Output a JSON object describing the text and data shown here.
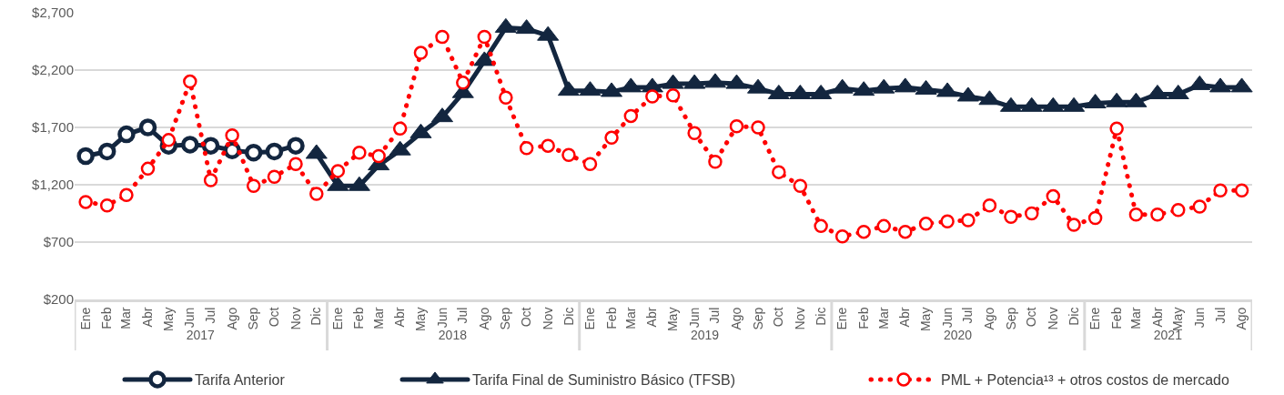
{
  "chart_data": {
    "type": "line",
    "x": [
      "2017-01",
      "2017-02",
      "2017-03",
      "2017-04",
      "2017-05",
      "2017-06",
      "2017-07",
      "2017-08",
      "2017-09",
      "2017-10",
      "2017-11",
      "2017-12",
      "2018-01",
      "2018-02",
      "2018-03",
      "2018-04",
      "2018-05",
      "2018-06",
      "2018-07",
      "2018-08",
      "2018-09",
      "2018-10",
      "2018-11",
      "2018-12",
      "2019-01",
      "2019-02",
      "2019-03",
      "2019-04",
      "2019-05",
      "2019-06",
      "2019-07",
      "2019-08",
      "2019-09",
      "2019-10",
      "2019-11",
      "2019-12",
      "2020-01",
      "2020-02",
      "2020-03",
      "2020-04",
      "2020-05",
      "2020-06",
      "2020-07",
      "2020-08",
      "2020-09",
      "2020-10",
      "2020-11",
      "2020-12",
      "2021-01",
      "2021-02",
      "2021-03",
      "2021-04",
      "2021-05",
      "2021-06",
      "2021-07",
      "2021-08"
    ],
    "xlim": [
      "2016-12-16",
      "2021-08-16"
    ],
    "xticks": [
      {
        "value": "2017-01",
        "label": "Ene"
      },
      {
        "value": "2017-02",
        "label": "Feb"
      },
      {
        "value": "2017-03",
        "label": "Mar"
      },
      {
        "value": "2017-04",
        "label": "Abr"
      },
      {
        "value": "2017-05",
        "label": "May"
      },
      {
        "value": "2017-06",
        "label": "Jun"
      },
      {
        "value": "2017-07",
        "label": "Jul"
      },
      {
        "value": "2017-08",
        "label": "Ago"
      },
      {
        "value": "2017-09",
        "label": "Sep"
      },
      {
        "value": "2017-10",
        "label": "Oct"
      },
      {
        "value": "2017-11",
        "label": "Nov"
      },
      {
        "value": "2017-12",
        "label": "Dic"
      },
      {
        "value": "2018-01",
        "label": "Ene"
      },
      {
        "value": "2018-02",
        "label": "Feb"
      },
      {
        "value": "2018-03",
        "label": "Mar"
      },
      {
        "value": "2018-04",
        "label": "Abr"
      },
      {
        "value": "2018-05",
        "label": "May"
      },
      {
        "value": "2018-06",
        "label": "Jun"
      },
      {
        "value": "2018-07",
        "label": "Jul"
      },
      {
        "value": "2018-08",
        "label": "Ago"
      },
      {
        "value": "2018-09",
        "label": "Sep"
      },
      {
        "value": "2018-10",
        "label": "Oct"
      },
      {
        "value": "2018-11",
        "label": "Nov"
      },
      {
        "value": "2018-12",
        "label": "Dic"
      },
      {
        "value": "2019-01",
        "label": "Ene"
      },
      {
        "value": "2019-02",
        "label": "Feb"
      },
      {
        "value": "2019-03",
        "label": "Mar"
      },
      {
        "value": "2019-04",
        "label": "Abr"
      },
      {
        "value": "2019-05",
        "label": "May"
      },
      {
        "value": "2019-06",
        "label": "Jun"
      },
      {
        "value": "2019-07",
        "label": "Jul"
      },
      {
        "value": "2019-08",
        "label": "Ago"
      },
      {
        "value": "2019-09",
        "label": "Sep"
      },
      {
        "value": "2019-10",
        "label": "Oct"
      },
      {
        "value": "2019-11",
        "label": "Nov"
      },
      {
        "value": "2019-12",
        "label": "Dic"
      },
      {
        "value": "2020-01",
        "label": "Ene"
      },
      {
        "value": "2020-02",
        "label": "Feb"
      },
      {
        "value": "2020-03",
        "label": "Mar"
      },
      {
        "value": "2020-04",
        "label": "Abr"
      },
      {
        "value": "2020-05",
        "label": "May"
      },
      {
        "value": "2020-06",
        "label": "Jun"
      },
      {
        "value": "2020-07",
        "label": "Jul"
      },
      {
        "value": "2020-08",
        "label": "Ago"
      },
      {
        "value": "2020-09",
        "label": "Sep"
      },
      {
        "value": "2020-10",
        "label": "Oct"
      },
      {
        "value": "2020-11",
        "label": "Nov"
      },
      {
        "value": "2020-12",
        "label": "Dic"
      },
      {
        "value": "2021-01",
        "label": "Ene"
      },
      {
        "value": "2021-02",
        "label": "Feb"
      },
      {
        "value": "2021-03",
        "label": "Mar"
      },
      {
        "value": "2021-04",
        "label": "Abr"
      },
      {
        "value": "2021-05",
        "label": "May"
      },
      {
        "value": "2021-06",
        "label": "Jun"
      },
      {
        "value": "2021-07",
        "label": "Jul"
      },
      {
        "value": "2021-08",
        "label": "Ago"
      }
    ],
    "x2lim": [
      "2016-12-16",
      "2021-08-16"
    ],
    "x2ticks": [
      {
        "value": "2017-06-16",
        "label": "2017"
      },
      {
        "value": "2018-06-16",
        "label": "2018"
      },
      {
        "value": "2019-06-16",
        "label": "2019"
      },
      {
        "value": "2020-06-16",
        "label": "2020"
      },
      {
        "value": "2021-04-16",
        "label": "2021"
      }
    ],
    "ylim": [
      200,
      2700
    ],
    "yticks": [
      {
        "value": 200,
        "label": "$200"
      },
      {
        "value": 700,
        "label": "$700"
      },
      {
        "value": 1200,
        "label": "$1,200"
      },
      {
        "value": 1700,
        "label": "$1,700"
      },
      {
        "value": 2200,
        "label": "$2,200"
      },
      {
        "value": 2700,
        "label": "$2,700"
      }
    ],
    "series": [
      {
        "name": "Tarifa Anterior",
        "color": "#13263f",
        "marker": "circle",
        "line_style": "solid",
        "values": [
          1450,
          1490,
          1640,
          1700,
          1540,
          1550,
          1540,
          1500,
          1480,
          1490,
          1540,
          null,
          null,
          null,
          null,
          null,
          null,
          null,
          null,
          null,
          null,
          null,
          null,
          null,
          null,
          null,
          null,
          null,
          null,
          null,
          null,
          null,
          null,
          null,
          null,
          null,
          null,
          null,
          null,
          null,
          null,
          null,
          null,
          null,
          null,
          null,
          null,
          null,
          null,
          null,
          null,
          null,
          null,
          null,
          null,
          null
        ]
      },
      {
        "name": "Tarifa Final de Suministro Básico (TFSB)",
        "color": "#13263f",
        "marker": "triangle",
        "line_style": "solid",
        "values": [
          null,
          null,
          null,
          null,
          null,
          null,
          null,
          null,
          null,
          null,
          null,
          1470,
          1190,
          1190,
          1370,
          1500,
          1650,
          1790,
          2000,
          2280,
          2570,
          2560,
          2500,
          2020,
          2020,
          2010,
          2050,
          2050,
          2080,
          2080,
          2090,
          2080,
          2040,
          1990,
          1990,
          1990,
          2040,
          2020,
          2040,
          2050,
          2030,
          2010,
          1970,
          1940,
          1880,
          1880,
          1880,
          1880,
          1910,
          1920,
          1920,
          1990,
          1990,
          2070,
          2050,
          2050
        ]
      },
      {
        "name": "PML + Potencia¹³ + otros costos de mercado",
        "color": "#ff0000",
        "marker": "circle",
        "line_style": "dotted",
        "values": [
          1050,
          1020,
          1110,
          1340,
          1590,
          2100,
          1240,
          1630,
          1190,
          1270,
          1380,
          1120,
          1320,
          1480,
          1450,
          1690,
          2350,
          2490,
          2090,
          2490,
          1960,
          1520,
          1540,
          1460,
          1380,
          1610,
          1800,
          1970,
          1980,
          1650,
          1400,
          1710,
          1700,
          1310,
          1190,
          840,
          750,
          790,
          840,
          790,
          860,
          880,
          890,
          1020,
          920,
          950,
          1100,
          850,
          910,
          1690,
          940,
          940,
          980,
          1010,
          1150,
          1150
        ]
      }
    ],
    "grid": "y",
    "legend": "bottom"
  }
}
